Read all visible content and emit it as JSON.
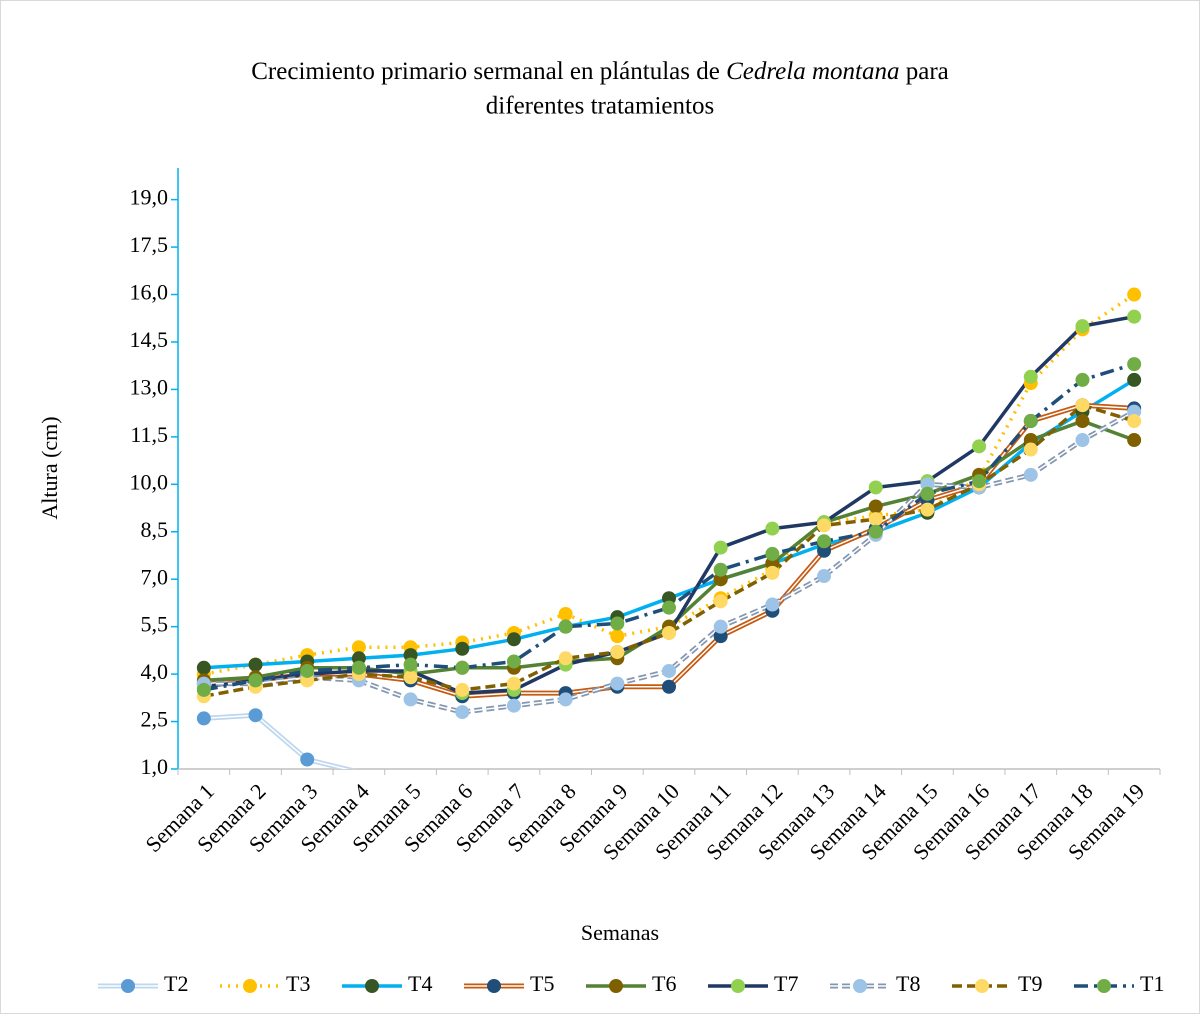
{
  "chart_data": {
    "type": "line",
    "title_parts": [
      "Crecimiento primario sermanal en plántulas de ",
      "Cedrela montana",
      " para",
      "diferentes tratamientos"
    ],
    "xlabel": "Semanas",
    "ylabel": "Altura (cm)",
    "categories": [
      "Semana 1",
      "Semana 2",
      "Semana 3",
      "Semana 4",
      "Semana 5",
      "Semana 6",
      "Semana 7",
      "Semana 8",
      "Semana 9",
      "Semana 10",
      "Semana 11",
      "Semana 12",
      "Semana 13",
      "Semana 14",
      "Semana 15",
      "Semana 16",
      "Semana 17",
      "Semana 18",
      "Semana 19"
    ],
    "ylim": [
      1,
      20
    ],
    "yticks": [
      {
        "value": 1,
        "label": "1,0"
      },
      {
        "value": 2.5,
        "label": "2,5"
      },
      {
        "value": 4,
        "label": "4,0"
      },
      {
        "value": 5.5,
        "label": "5,5"
      },
      {
        "value": 7,
        "label": "7,0"
      },
      {
        "value": 8.5,
        "label": "8,5"
      },
      {
        "value": 10,
        "label": "10,0"
      },
      {
        "value": 11.5,
        "label": "11,5"
      },
      {
        "value": 13,
        "label": "13,0"
      },
      {
        "value": 14.5,
        "label": "14,5"
      },
      {
        "value": 16,
        "label": "16,0"
      },
      {
        "value": 17.5,
        "label": "17,5"
      },
      {
        "value": 19,
        "label": "19,0"
      }
    ],
    "legend": "bottom",
    "series": [
      {
        "name": "T2",
        "color": "#bdd7ee",
        "marker_color": "#5b9bd5",
        "double": true,
        "values": [
          2.6,
          2.7,
          1.3,
          0.9,
          null,
          null,
          null,
          null,
          null,
          null,
          null,
          null,
          null,
          null,
          null,
          null,
          null,
          null,
          null
        ]
      },
      {
        "name": "T3",
        "color": "#ffc000",
        "marker_color": "#ffc000",
        "dash": "2 6",
        "values": [
          4.0,
          4.3,
          4.6,
          4.85,
          4.85,
          5.0,
          5.3,
          5.9,
          5.2,
          5.5,
          6.4,
          7.3,
          8.8,
          9.0,
          9.2,
          10.2,
          13.2,
          14.9,
          16.0
        ]
      },
      {
        "name": "T4",
        "color": "#00b0f0",
        "marker_color": "#375623",
        "values": [
          4.2,
          4.3,
          4.4,
          4.5,
          4.6,
          4.8,
          5.1,
          5.5,
          5.8,
          6.4,
          7.0,
          7.5,
          8.1,
          8.5,
          9.1,
          9.9,
          11.3,
          12.3,
          13.3
        ]
      },
      {
        "name": "T5",
        "color": "#c55a11",
        "marker_color": "#1f4e79",
        "double": true,
        "values": [
          3.7,
          3.8,
          4.0,
          4.0,
          3.8,
          3.3,
          3.4,
          3.4,
          3.6,
          3.6,
          5.2,
          6.0,
          7.9,
          8.6,
          9.5,
          10.0,
          12.0,
          12.5,
          12.4
        ]
      },
      {
        "name": "T6",
        "color": "#548235",
        "marker_color": "#7f6000",
        "values": [
          3.8,
          3.9,
          4.2,
          4.2,
          4.0,
          4.2,
          4.2,
          4.4,
          4.5,
          5.5,
          7.0,
          7.5,
          8.8,
          9.3,
          9.7,
          10.3,
          11.4,
          12.0,
          11.4
        ]
      },
      {
        "name": "T7",
        "color": "#203864",
        "marker_color": "#92d050",
        "values": [
          3.6,
          3.8,
          4.0,
          4.1,
          4.1,
          3.4,
          3.5,
          4.3,
          4.7,
          5.3,
          8.0,
          8.6,
          8.8,
          9.9,
          10.1,
          11.2,
          13.4,
          15.0,
          15.3
        ]
      },
      {
        "name": "T8",
        "color": "#8497b0",
        "marker_color": "#9dc3e6",
        "double": true,
        "dash": "8 4",
        "values": [
          3.7,
          3.7,
          3.9,
          3.8,
          3.2,
          2.8,
          3.0,
          3.2,
          3.7,
          4.1,
          5.5,
          6.2,
          7.1,
          8.4,
          10.0,
          9.9,
          10.3,
          11.4,
          12.3
        ]
      },
      {
        "name": "T9",
        "color": "#806000",
        "marker_color": "#ffd966",
        "dash": "10 5",
        "values": [
          3.3,
          3.6,
          3.8,
          4.0,
          3.9,
          3.5,
          3.7,
          4.5,
          4.7,
          5.3,
          6.3,
          7.2,
          8.7,
          8.9,
          9.2,
          10.0,
          11.1,
          12.5,
          12.0
        ]
      },
      {
        "name": "T1",
        "color": "#1f4e79",
        "marker_color": "#70ad47",
        "dash": "14 6 3 6",
        "values": [
          3.5,
          3.8,
          4.1,
          4.2,
          4.3,
          4.2,
          4.4,
          5.5,
          5.6,
          6.1,
          7.3,
          7.8,
          8.2,
          8.5,
          9.7,
          10.1,
          12.0,
          13.3,
          13.8
        ]
      }
    ]
  }
}
